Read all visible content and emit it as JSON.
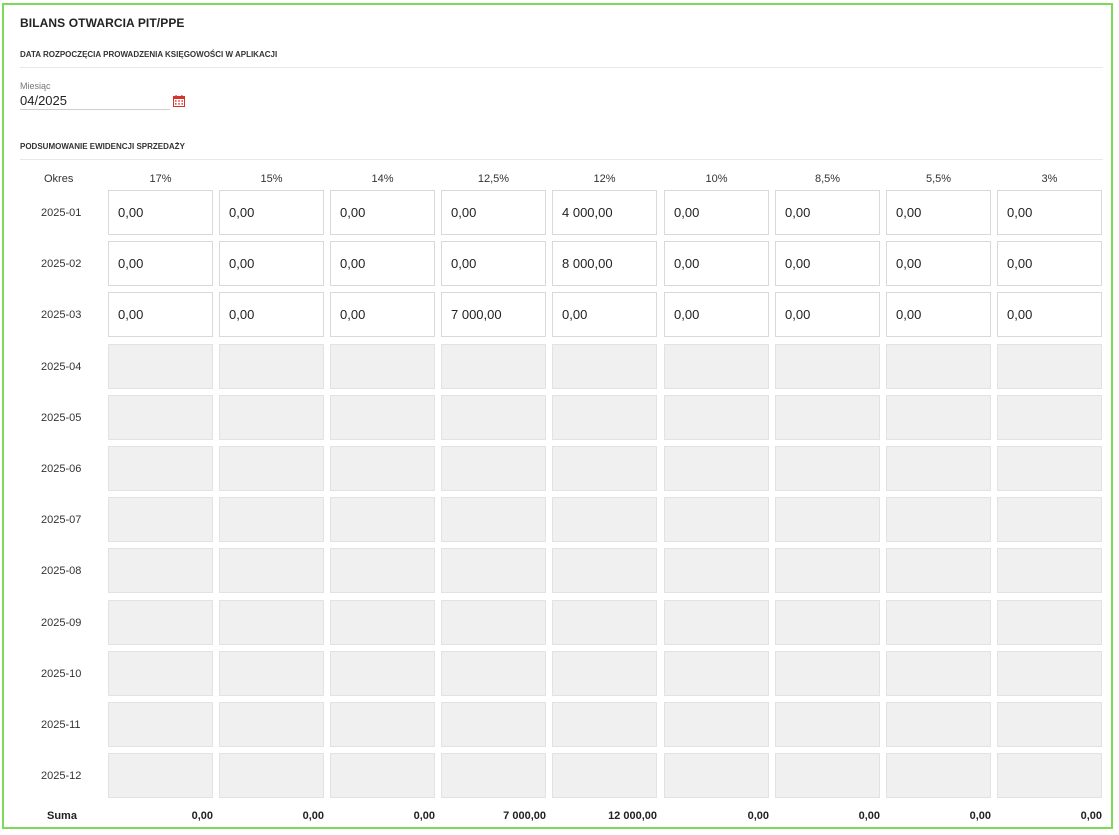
{
  "header": {
    "title": "BILANS OTWARCIA PIT/PPE"
  },
  "start_section": {
    "title": "DATA ROZPOCZĘCIA PROWADZENIA KSIĘGOWOŚCI W APLIKACJI",
    "month_label": "Miesiąc",
    "month_value": "04/2025",
    "icon": "calendar-icon"
  },
  "sales_section": {
    "title": "PODSUMOWANIE EWIDENCJI SPRZEDAŻY",
    "period_header": "Okres",
    "rates": [
      "17%",
      "15%",
      "14%",
      "12,5%",
      "12%",
      "10%",
      "8,5%",
      "5,5%",
      "3%"
    ],
    "rows": [
      {
        "period": "2025-01",
        "editable": true,
        "values": [
          "0,00",
          "0,00",
          "0,00",
          "0,00",
          "4 000,00",
          "0,00",
          "0,00",
          "0,00",
          "0,00"
        ]
      },
      {
        "period": "2025-02",
        "editable": true,
        "values": [
          "0,00",
          "0,00",
          "0,00",
          "0,00",
          "8 000,00",
          "0,00",
          "0,00",
          "0,00",
          "0,00"
        ]
      },
      {
        "period": "2025-03",
        "editable": true,
        "values": [
          "0,00",
          "0,00",
          "0,00",
          "7 000,00",
          "0,00",
          "0,00",
          "0,00",
          "0,00",
          "0,00"
        ]
      },
      {
        "period": "2025-04",
        "editable": false,
        "values": [
          "",
          "",
          "",
          "",
          "",
          "",
          "",
          "",
          ""
        ]
      },
      {
        "period": "2025-05",
        "editable": false,
        "values": [
          "",
          "",
          "",
          "",
          "",
          "",
          "",
          "",
          ""
        ]
      },
      {
        "period": "2025-06",
        "editable": false,
        "values": [
          "",
          "",
          "",
          "",
          "",
          "",
          "",
          "",
          ""
        ]
      },
      {
        "period": "2025-07",
        "editable": false,
        "values": [
          "",
          "",
          "",
          "",
          "",
          "",
          "",
          "",
          ""
        ]
      },
      {
        "period": "2025-08",
        "editable": false,
        "values": [
          "",
          "",
          "",
          "",
          "",
          "",
          "",
          "",
          ""
        ]
      },
      {
        "period": "2025-09",
        "editable": false,
        "values": [
          "",
          "",
          "",
          "",
          "",
          "",
          "",
          "",
          ""
        ]
      },
      {
        "period": "2025-10",
        "editable": false,
        "values": [
          "",
          "",
          "",
          "",
          "",
          "",
          "",
          "",
          ""
        ]
      },
      {
        "period": "2025-11",
        "editable": false,
        "values": [
          "",
          "",
          "",
          "",
          "",
          "",
          "",
          "",
          ""
        ]
      },
      {
        "period": "2025-12",
        "editable": false,
        "values": [
          "",
          "",
          "",
          "",
          "",
          "",
          "",
          "",
          ""
        ]
      }
    ],
    "sum_label": "Suma",
    "sums": [
      "0,00",
      "0,00",
      "0,00",
      "7 000,00",
      "12 000,00",
      "0,00",
      "0,00",
      "0,00",
      "0,00"
    ]
  },
  "colors": {
    "frame_border": "#7ed957",
    "disabled_cell": "#f0f0f0",
    "calendar_icon": "#d9322b"
  }
}
